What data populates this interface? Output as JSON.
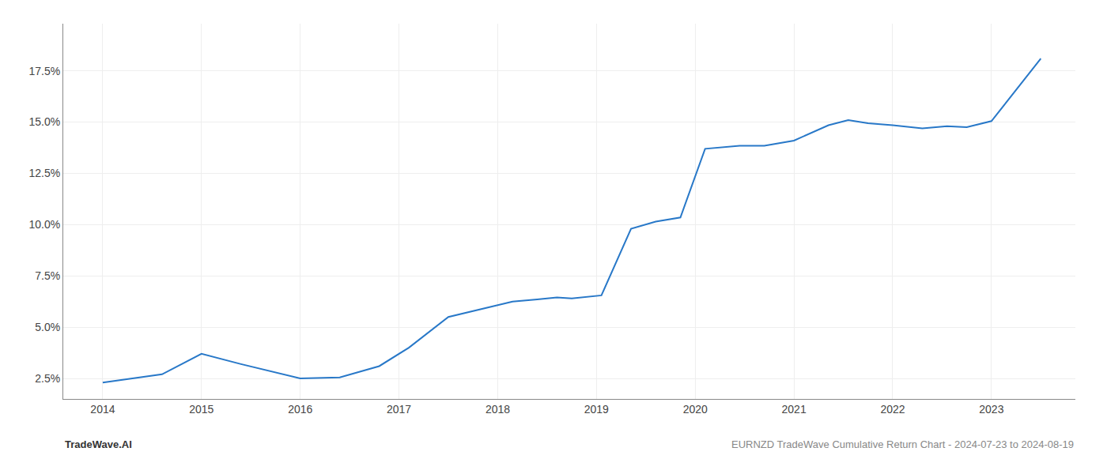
{
  "chart_data": {
    "type": "line",
    "x": [
      2014.0,
      2014.6,
      2015.0,
      2015.4,
      2016.0,
      2016.4,
      2016.8,
      2017.1,
      2017.5,
      2017.85,
      2018.0,
      2018.15,
      2018.4,
      2018.6,
      2018.75,
      2018.85,
      2019.05,
      2019.35,
      2019.6,
      2019.85,
      2020.1,
      2020.45,
      2020.7,
      2021.0,
      2021.35,
      2021.55,
      2021.75,
      2022.0,
      2022.3,
      2022.55,
      2022.75,
      2023.0,
      2023.5
    ],
    "values": [
      2.3,
      2.7,
      3.7,
      3.2,
      2.5,
      2.55,
      3.1,
      4.0,
      5.5,
      5.9,
      6.1,
      6.25,
      6.35,
      6.45,
      6.4,
      6.45,
      6.55,
      9.8,
      10.15,
      10.35,
      13.7,
      13.85,
      13.85,
      14.1,
      14.85,
      15.1,
      14.95,
      14.85,
      14.7,
      14.8,
      14.75,
      15.05,
      18.1
    ],
    "color": "#2878c8",
    "xlim": [
      2013.6,
      2023.85
    ],
    "xticks": [
      2014,
      2015,
      2016,
      2017,
      2018,
      2019,
      2020,
      2021,
      2022,
      2023
    ],
    "ylim": [
      1.5,
      19.8
    ],
    "yticks": [
      {
        "value": 2.5,
        "label": "2.5%"
      },
      {
        "value": 5.0,
        "label": "5.0%"
      },
      {
        "value": 7.5,
        "label": "7.5%"
      },
      {
        "value": 10.0,
        "label": "10.0%"
      },
      {
        "value": 12.5,
        "label": "12.5%"
      },
      {
        "value": 15.0,
        "label": "15.0%"
      },
      {
        "value": 17.5,
        "label": "17.5%"
      }
    ],
    "grid": true,
    "annotations": [
      {
        "text": "TradeWave.AI"
      },
      {
        "text": "EURNZD TradeWave Cumulative Return Chart - 2024-07-23 to 2024-08-19"
      }
    ]
  }
}
